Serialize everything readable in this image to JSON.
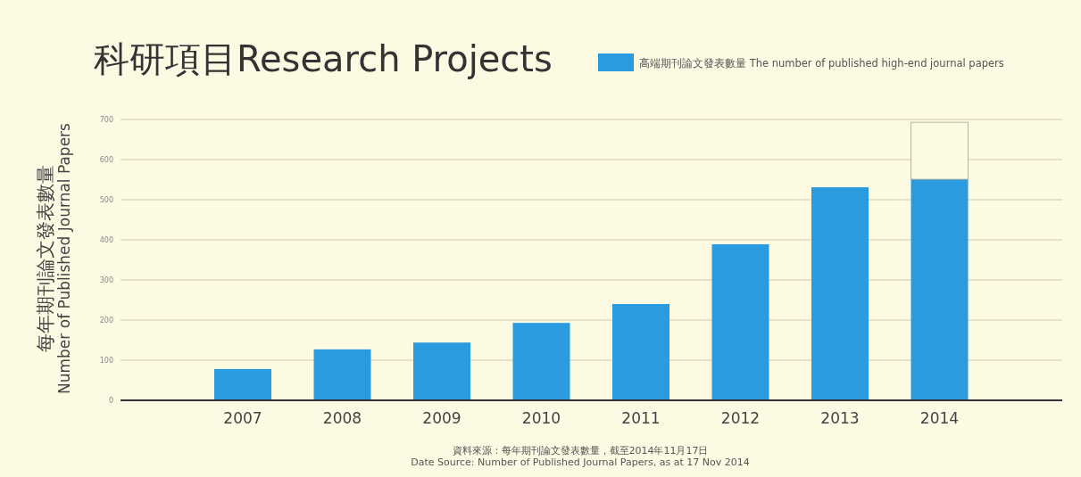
{
  "chart_data": {
    "type": "bar",
    "title": "科研項目Research Projects",
    "ylabel": "每年期刊論文發表數量\nNumber of Published Journal Papers",
    "categories": [
      "2007",
      "2008",
      "2009",
      "2010",
      "2011",
      "2012",
      "2013",
      "2014"
    ],
    "stacked": true,
    "series": [
      {
        "name": "高端期刊論文發表數量 The number of published high-end journal papers",
        "color": "#2b9be0",
        "values": [
          78,
          127,
          144,
          193,
          240,
          389,
          531,
          551
        ]
      },
      {
        "color": "#fdfae3",
        "values": [
          null,
          null,
          null,
          null,
          null,
          null,
          null,
          142
        ]
      }
    ],
    "ylim": [
      0,
      700
    ],
    "yticks": [
      0,
      100,
      200,
      300,
      400,
      500,
      600,
      700
    ],
    "grid": "y",
    "legend": "top right",
    "annotations": [
      "資料來源：每年期刊論文發表數量，截至2014年11月17日",
      "Date Source:  Number of Published Journal Papers, as at 17 Nov 2014"
    ]
  }
}
